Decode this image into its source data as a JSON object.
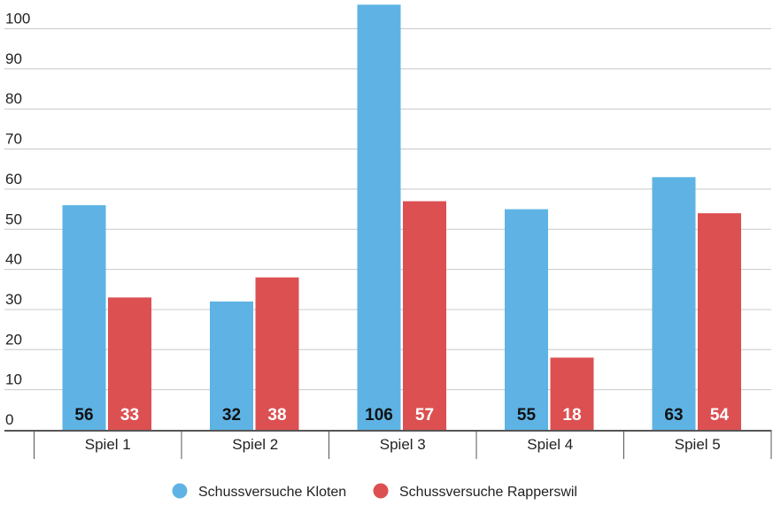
{
  "chart_data": {
    "type": "bar",
    "categories": [
      "Spiel 1",
      "Spiel 2",
      "Spiel 3",
      "Spiel 4",
      "Spiel 5"
    ],
    "series": [
      {
        "name": "Schussversuche Kloten",
        "values": [
          56,
          32,
          106,
          55,
          63
        ],
        "color": "#5eb3e4",
        "label_color": "#111111"
      },
      {
        "name": "Schussversuche Rapperswil",
        "values": [
          33,
          38,
          57,
          18,
          54
        ],
        "color": "#dc5052",
        "label_color": "#ffffff"
      }
    ],
    "y_ticks": [
      0,
      10,
      20,
      30,
      40,
      50,
      60,
      70,
      80,
      90,
      100
    ],
    "ylim": [
      0,
      106
    ],
    "grid": true,
    "legend_position": "bottom-center",
    "title": "",
    "xlabel": "",
    "ylabel": ""
  }
}
